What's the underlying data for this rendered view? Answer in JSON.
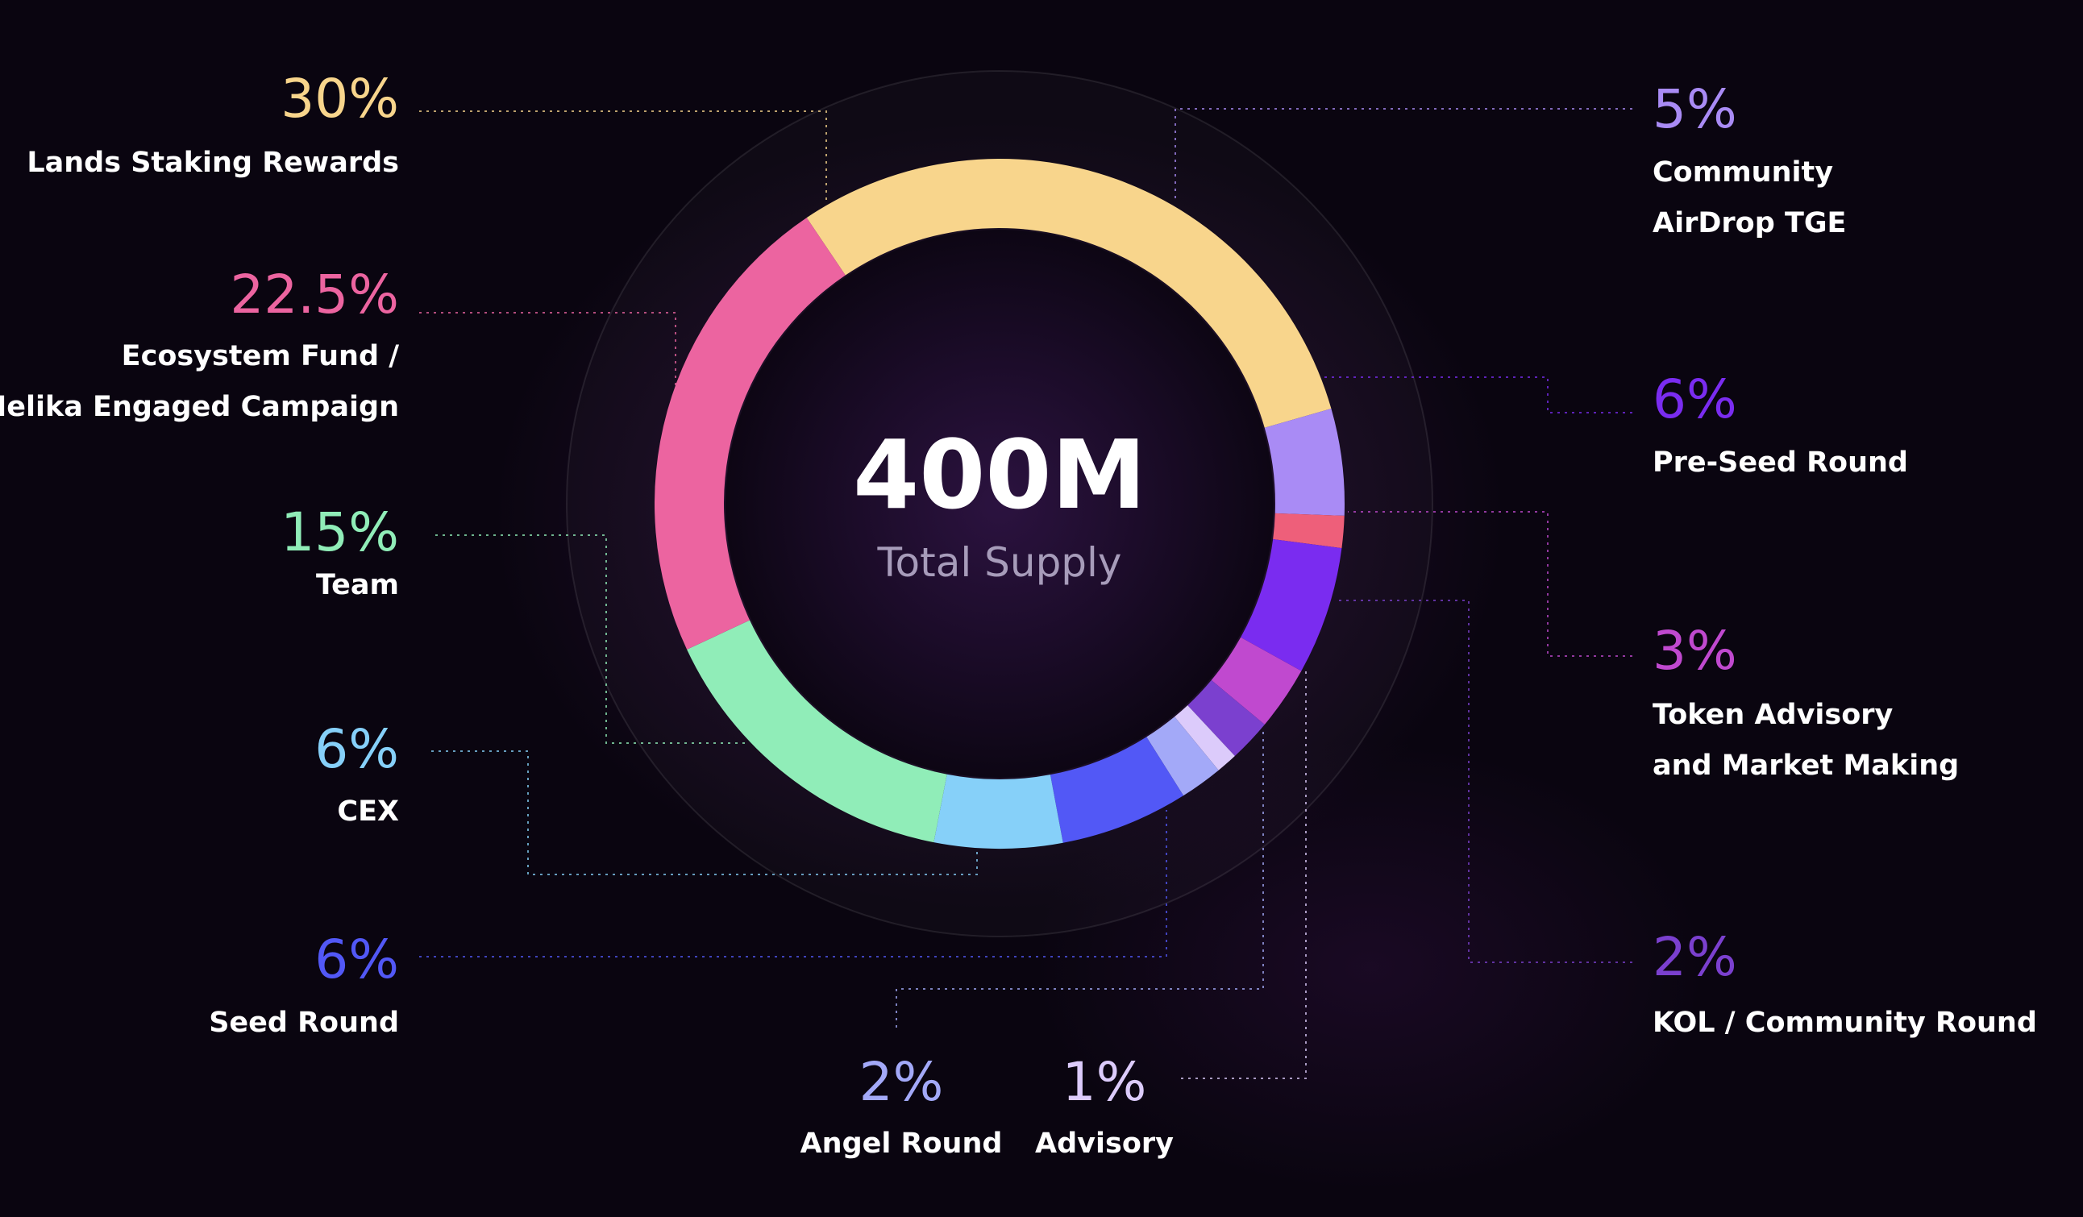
{
  "chart_data": {
    "type": "pie",
    "style": "donut",
    "center": {
      "value": "400M",
      "label": "Total Supply"
    },
    "slices": [
      {
        "name": "Lands Staking Rewards",
        "lines": [
          "Lands Staking Rewards"
        ],
        "value": 30,
        "label": "30%",
        "color": "#f8d58c"
      },
      {
        "name": "Community AirDrop TGE",
        "lines": [
          "Community",
          "AirDrop TGE"
        ],
        "value": 5,
        "label": "5%",
        "color": "#a98bf5"
      },
      {
        "name": "Pre-Seed Round",
        "lines": [
          "Pre-Seed Round"
        ],
        "value": 6,
        "label": "6%",
        "color": "#7a2cf0"
      },
      {
        "name": "Token Advisory and Market Making",
        "lines": [
          "Token Advisory",
          "and Market Making"
        ],
        "value": 3,
        "label": "3%",
        "color": "#c049cf"
      },
      {
        "name": "KOL / Community Round",
        "lines": [
          "KOL / Community Round"
        ],
        "value": 2,
        "label": "2%",
        "color": "#7b40cf"
      },
      {
        "name": "Advisory",
        "lines": [
          "Advisory"
        ],
        "value": 1,
        "label": "1%",
        "color": "#dccbfb"
      },
      {
        "name": "Angel Round",
        "lines": [
          "Angel Round"
        ],
        "value": 2,
        "label": "2%",
        "color": "#a3a9f8"
      },
      {
        "name": "Seed Round",
        "lines": [
          "Seed Round"
        ],
        "value": 6,
        "label": "6%",
        "color": "#5258f6"
      },
      {
        "name": "CEX",
        "lines": [
          "CEX"
        ],
        "value": 6,
        "label": "6%",
        "color": "#86d0f9"
      },
      {
        "name": "Team",
        "lines": [
          "Team"
        ],
        "value": 15,
        "label": "15%",
        "color": "#90edb8"
      },
      {
        "name": "Ecosystem Fund / Helika Engaged Campaign",
        "lines": [
          "Ecosystem Fund /",
          "Helika Engaged Campaign"
        ],
        "value": 22.5,
        "label": "22.5%",
        "color": "#ec64a0"
      }
    ],
    "unlabeled_slice": {
      "value": 1.5,
      "color": "#ee5f7a"
    }
  }
}
